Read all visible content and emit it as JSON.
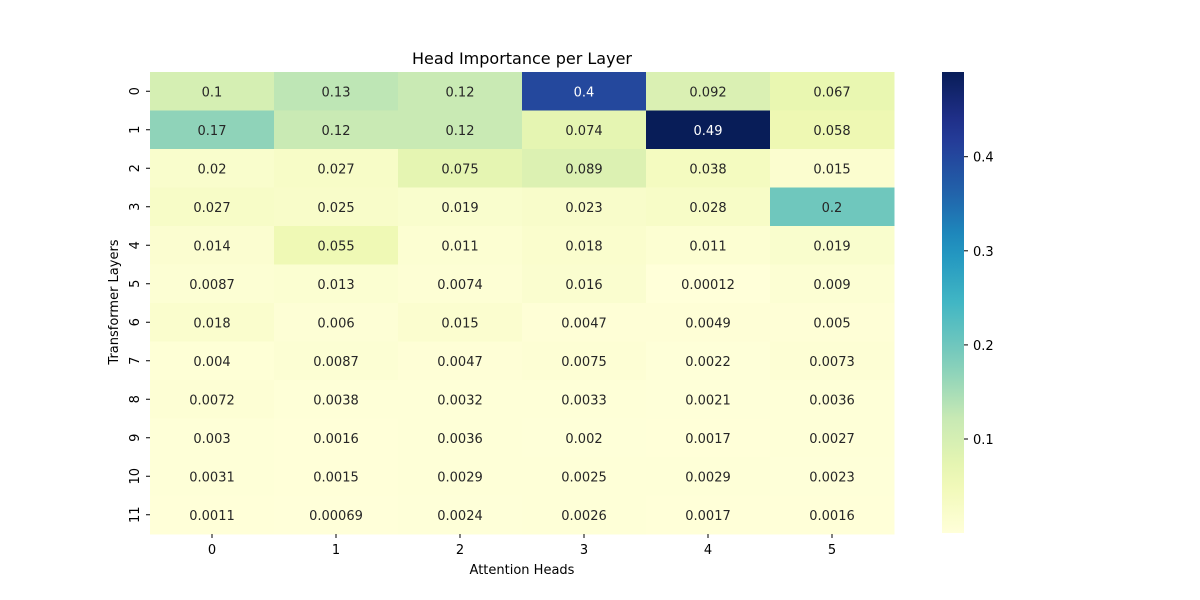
{
  "chart_data": {
    "type": "heatmap",
    "title": "Head Importance per Layer",
    "xlabel": "Attention Heads",
    "ylabel": "Transformer Layers",
    "x_categories": [
      "0",
      "1",
      "2",
      "3",
      "4",
      "5"
    ],
    "y_categories": [
      "0",
      "1",
      "2",
      "3",
      "4",
      "5",
      "6",
      "7",
      "8",
      "9",
      "10",
      "11"
    ],
    "values": [
      [
        0.1,
        0.13,
        0.12,
        0.4,
        0.092,
        0.067
      ],
      [
        0.17,
        0.12,
        0.12,
        0.074,
        0.49,
        0.058
      ],
      [
        0.02,
        0.027,
        0.075,
        0.089,
        0.038,
        0.015
      ],
      [
        0.027,
        0.025,
        0.019,
        0.023,
        0.028,
        0.2
      ],
      [
        0.014,
        0.055,
        0.011,
        0.018,
        0.011,
        0.019
      ],
      [
        0.0087,
        0.013,
        0.0074,
        0.016,
        0.00012,
        0.009
      ],
      [
        0.018,
        0.006,
        0.015,
        0.0047,
        0.0049,
        0.005
      ],
      [
        0.004,
        0.0087,
        0.0047,
        0.0075,
        0.0022,
        0.0073
      ],
      [
        0.0072,
        0.0038,
        0.0032,
        0.0033,
        0.0021,
        0.0036
      ],
      [
        0.003,
        0.0016,
        0.0036,
        0.002,
        0.0017,
        0.0027
      ],
      [
        0.0031,
        0.0015,
        0.0029,
        0.0025,
        0.0029,
        0.0023
      ],
      [
        0.0011,
        0.00069,
        0.0024,
        0.0026,
        0.0017,
        0.0016
      ]
    ],
    "cell_labels": [
      [
        "0.1",
        "0.13",
        "0.12",
        "0.4",
        "0.092",
        "0.067"
      ],
      [
        "0.17",
        "0.12",
        "0.12",
        "0.074",
        "0.49",
        "0.058"
      ],
      [
        "0.02",
        "0.027",
        "0.075",
        "0.089",
        "0.038",
        "0.015"
      ],
      [
        "0.027",
        "0.025",
        "0.019",
        "0.023",
        "0.028",
        "0.2"
      ],
      [
        "0.014",
        "0.055",
        "0.011",
        "0.018",
        "0.011",
        "0.019"
      ],
      [
        "0.0087",
        "0.013",
        "0.0074",
        "0.016",
        "0.00012",
        "0.009"
      ],
      [
        "0.018",
        "0.006",
        "0.015",
        "0.0047",
        "0.0049",
        "0.005"
      ],
      [
        "0.004",
        "0.0087",
        "0.0047",
        "0.0075",
        "0.0022",
        "0.0073"
      ],
      [
        "0.0072",
        "0.0038",
        "0.0032",
        "0.0033",
        "0.0021",
        "0.0036"
      ],
      [
        "0.003",
        "0.0016",
        "0.0036",
        "0.002",
        "0.0017",
        "0.0027"
      ],
      [
        "0.0031",
        "0.0015",
        "0.0029",
        "0.0025",
        "0.0029",
        "0.0023"
      ],
      [
        "0.0011",
        "0.00069",
        "0.0024",
        "0.0026",
        "0.0017",
        "0.0016"
      ]
    ],
    "colormap": "YlGnBu",
    "colorbar": {
      "vmin": 0.00012,
      "vmax": 0.49,
      "ticks": [
        0.1,
        0.2,
        0.3,
        0.4
      ],
      "tick_labels": [
        "0.1",
        "0.2",
        "0.3",
        "0.4"
      ],
      "placement": "right"
    },
    "grid": false
  }
}
